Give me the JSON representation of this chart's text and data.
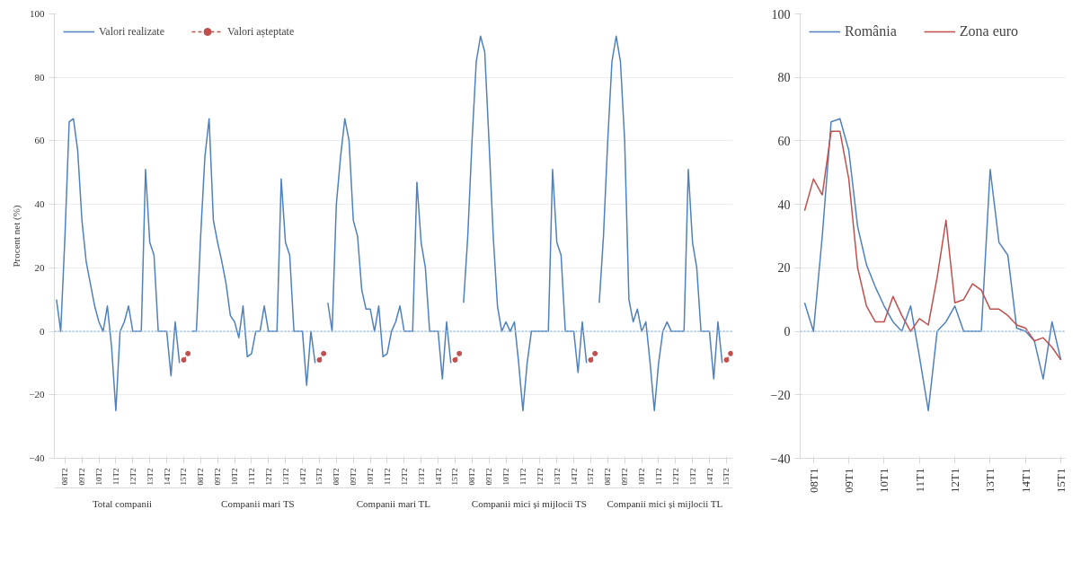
{
  "chart_data": [
    {
      "type": "line",
      "ylabel": "Procent net (%)",
      "categories": [
        null,
        null,
        "08T2",
        null,
        null,
        null,
        "09T2",
        null,
        null,
        null,
        "10T2",
        null,
        null,
        null,
        "11T2",
        null,
        null,
        null,
        "12T2",
        null,
        null,
        null,
        "13T2",
        null,
        null,
        null,
        "14T2",
        null,
        null,
        null,
        "15T2",
        null,
        null,
        null,
        "08T2",
        null,
        null,
        null,
        "09T2",
        null,
        null,
        null,
        "10T2",
        null,
        null,
        null,
        "11T2",
        null,
        null,
        null,
        "12T2",
        null,
        null,
        null,
        "13T2",
        null,
        null,
        null,
        "14T2",
        null,
        null,
        null,
        "15T2",
        null,
        null,
        null,
        "08T2",
        null,
        null,
        null,
        "09T2",
        null,
        null,
        null,
        "10T2",
        null,
        null,
        null,
        "11T2",
        null,
        null,
        null,
        "12T2",
        null,
        null,
        null,
        "13T2",
        null,
        null,
        null,
        "14T2",
        null,
        null,
        null,
        "15T2",
        null,
        null,
        null,
        "08T2",
        null,
        null,
        null,
        "09T2",
        null,
        null,
        null,
        "10T2",
        null,
        null,
        null,
        "11T2",
        null,
        null,
        null,
        "12T2",
        null,
        null,
        null,
        "13T2",
        null,
        null,
        null,
        "14T2",
        null,
        null,
        null,
        "15T2",
        null,
        null,
        null,
        "08T2",
        null,
        null,
        null,
        "09T2",
        null,
        null,
        null,
        "10T2",
        null,
        null,
        null,
        "11T2",
        null,
        null,
        null,
        "12T2",
        null,
        null,
        null,
        "13T2",
        null,
        null,
        null,
        "14T2",
        null,
        null,
        null,
        "15T2",
        null
      ],
      "series": [
        {
          "name": "Valori realizate",
          "color": "#4f81bd",
          "values": [
            10,
            0,
            30,
            66,
            67,
            57,
            35,
            22,
            15,
            8,
            3,
            0,
            8,
            -5,
            -25,
            0,
            3,
            8,
            0,
            0,
            0,
            51,
            28,
            24,
            0,
            0,
            0,
            -14,
            3,
            -10,
            null,
            null,
            0,
            0,
            30,
            55,
            67,
            35,
            28,
            22,
            15,
            5,
            3,
            -2,
            8,
            -8,
            -7,
            0,
            0,
            8,
            0,
            0,
            0,
            48,
            28,
            24,
            0,
            0,
            0,
            -17,
            0,
            -10,
            null,
            null,
            9,
            0,
            40,
            55,
            67,
            60,
            35,
            30,
            13,
            7,
            7,
            0,
            8,
            -8,
            -7,
            0,
            3,
            8,
            0,
            0,
            0,
            47,
            28,
            20,
            0,
            0,
            0,
            -15,
            3,
            -10,
            null,
            null,
            9,
            30,
            60,
            85,
            93,
            88,
            60,
            30,
            8,
            0,
            3,
            0,
            3,
            -10,
            -25,
            -10,
            0,
            0,
            0,
            0,
            0,
            51,
            28,
            24,
            0,
            0,
            0,
            -13,
            3,
            -10,
            null,
            null,
            9,
            30,
            60,
            85,
            93,
            85,
            60,
            10,
            3,
            7,
            0,
            3,
            -10,
            -25,
            -10,
            0,
            3,
            0,
            0,
            0,
            0,
            51,
            28,
            20,
            0,
            0,
            0,
            -15,
            3,
            -10,
            null,
            null
          ]
        },
        {
          "name": "Valori așteptate",
          "color": "#c0504d",
          "marker": "circle",
          "line_style": "dashed",
          "values": [
            null,
            null,
            null,
            null,
            null,
            null,
            null,
            null,
            null,
            null,
            null,
            null,
            null,
            null,
            null,
            null,
            null,
            null,
            null,
            null,
            null,
            null,
            null,
            null,
            null,
            null,
            null,
            null,
            null,
            null,
            -9,
            -7,
            null,
            null,
            null,
            null,
            null,
            null,
            null,
            null,
            null,
            null,
            null,
            null,
            null,
            null,
            null,
            null,
            null,
            null,
            null,
            null,
            null,
            null,
            null,
            null,
            null,
            null,
            null,
            null,
            null,
            null,
            -9,
            -7,
            null,
            null,
            null,
            null,
            null,
            null,
            null,
            null,
            null,
            null,
            null,
            null,
            null,
            null,
            null,
            null,
            null,
            null,
            null,
            null,
            null,
            null,
            null,
            null,
            null,
            null,
            null,
            null,
            null,
            null,
            -9,
            -7,
            null,
            null,
            null,
            null,
            null,
            null,
            null,
            null,
            null,
            null,
            null,
            null,
            null,
            null,
            null,
            null,
            null,
            null,
            null,
            null,
            null,
            null,
            null,
            null,
            null,
            null,
            null,
            null,
            null,
            null,
            -9,
            -7,
            null,
            null,
            null,
            null,
            null,
            null,
            null,
            null,
            null,
            null,
            null,
            null,
            null,
            null,
            null,
            null,
            null,
            null,
            null,
            null,
            null,
            null,
            null,
            null,
            null,
            null,
            null,
            null,
            null,
            null,
            -9,
            -7
          ]
        }
      ],
      "ylim": [
        -40,
        100
      ],
      "yticks": [
        -40,
        -20,
        0,
        20,
        40,
        60,
        80,
        100
      ],
      "grid": "y",
      "legend": "top left",
      "ref_lines": [
        {
          "axis": "y",
          "value": 0,
          "color": "#9dc3e6",
          "line_style": "dotted"
        }
      ],
      "annotations": [
        "Total companii",
        "Companii mari TS",
        "Companii mari TL",
        "Companii mici și mijlocii TS",
        "Companii mici și mijlocii TL"
      ]
    },
    {
      "type": "line",
      "categories": [
        null,
        "08T1",
        null,
        null,
        null,
        "09T1",
        null,
        null,
        null,
        "10T1",
        null,
        null,
        null,
        "11T1",
        null,
        null,
        null,
        "12T1",
        null,
        null,
        null,
        "13T1",
        null,
        null,
        null,
        "14T1",
        null,
        null,
        null,
        "15T1"
      ],
      "series": [
        {
          "name": "România",
          "color": "#4f81bd",
          "values": [
            9,
            0,
            30,
            66,
            67,
            57,
            33,
            21,
            14,
            8,
            3,
            0,
            8,
            -8,
            -25,
            0,
            3,
            8,
            0,
            0,
            0,
            51,
            28,
            24,
            1,
            0,
            -3,
            -15,
            3,
            -9
          ]
        },
        {
          "name": "Zona euro",
          "color": "#c0504d",
          "values": [
            38,
            48,
            43,
            63,
            63,
            48,
            20,
            8,
            3,
            3,
            11,
            5,
            0,
            4,
            2,
            17,
            35,
            9,
            10,
            15,
            13,
            7,
            7,
            5,
            2,
            1,
            -3,
            -2,
            -5,
            -9
          ]
        }
      ],
      "ylim": [
        -40,
        100
      ],
      "yticks": [
        -40,
        -20,
        0,
        20,
        40,
        60,
        80,
        100
      ],
      "grid": "y",
      "legend": "top left",
      "ref_lines": [
        {
          "axis": "y",
          "value": 0,
          "color": "#9dc3e6",
          "line_style": "dotted"
        }
      ]
    }
  ]
}
